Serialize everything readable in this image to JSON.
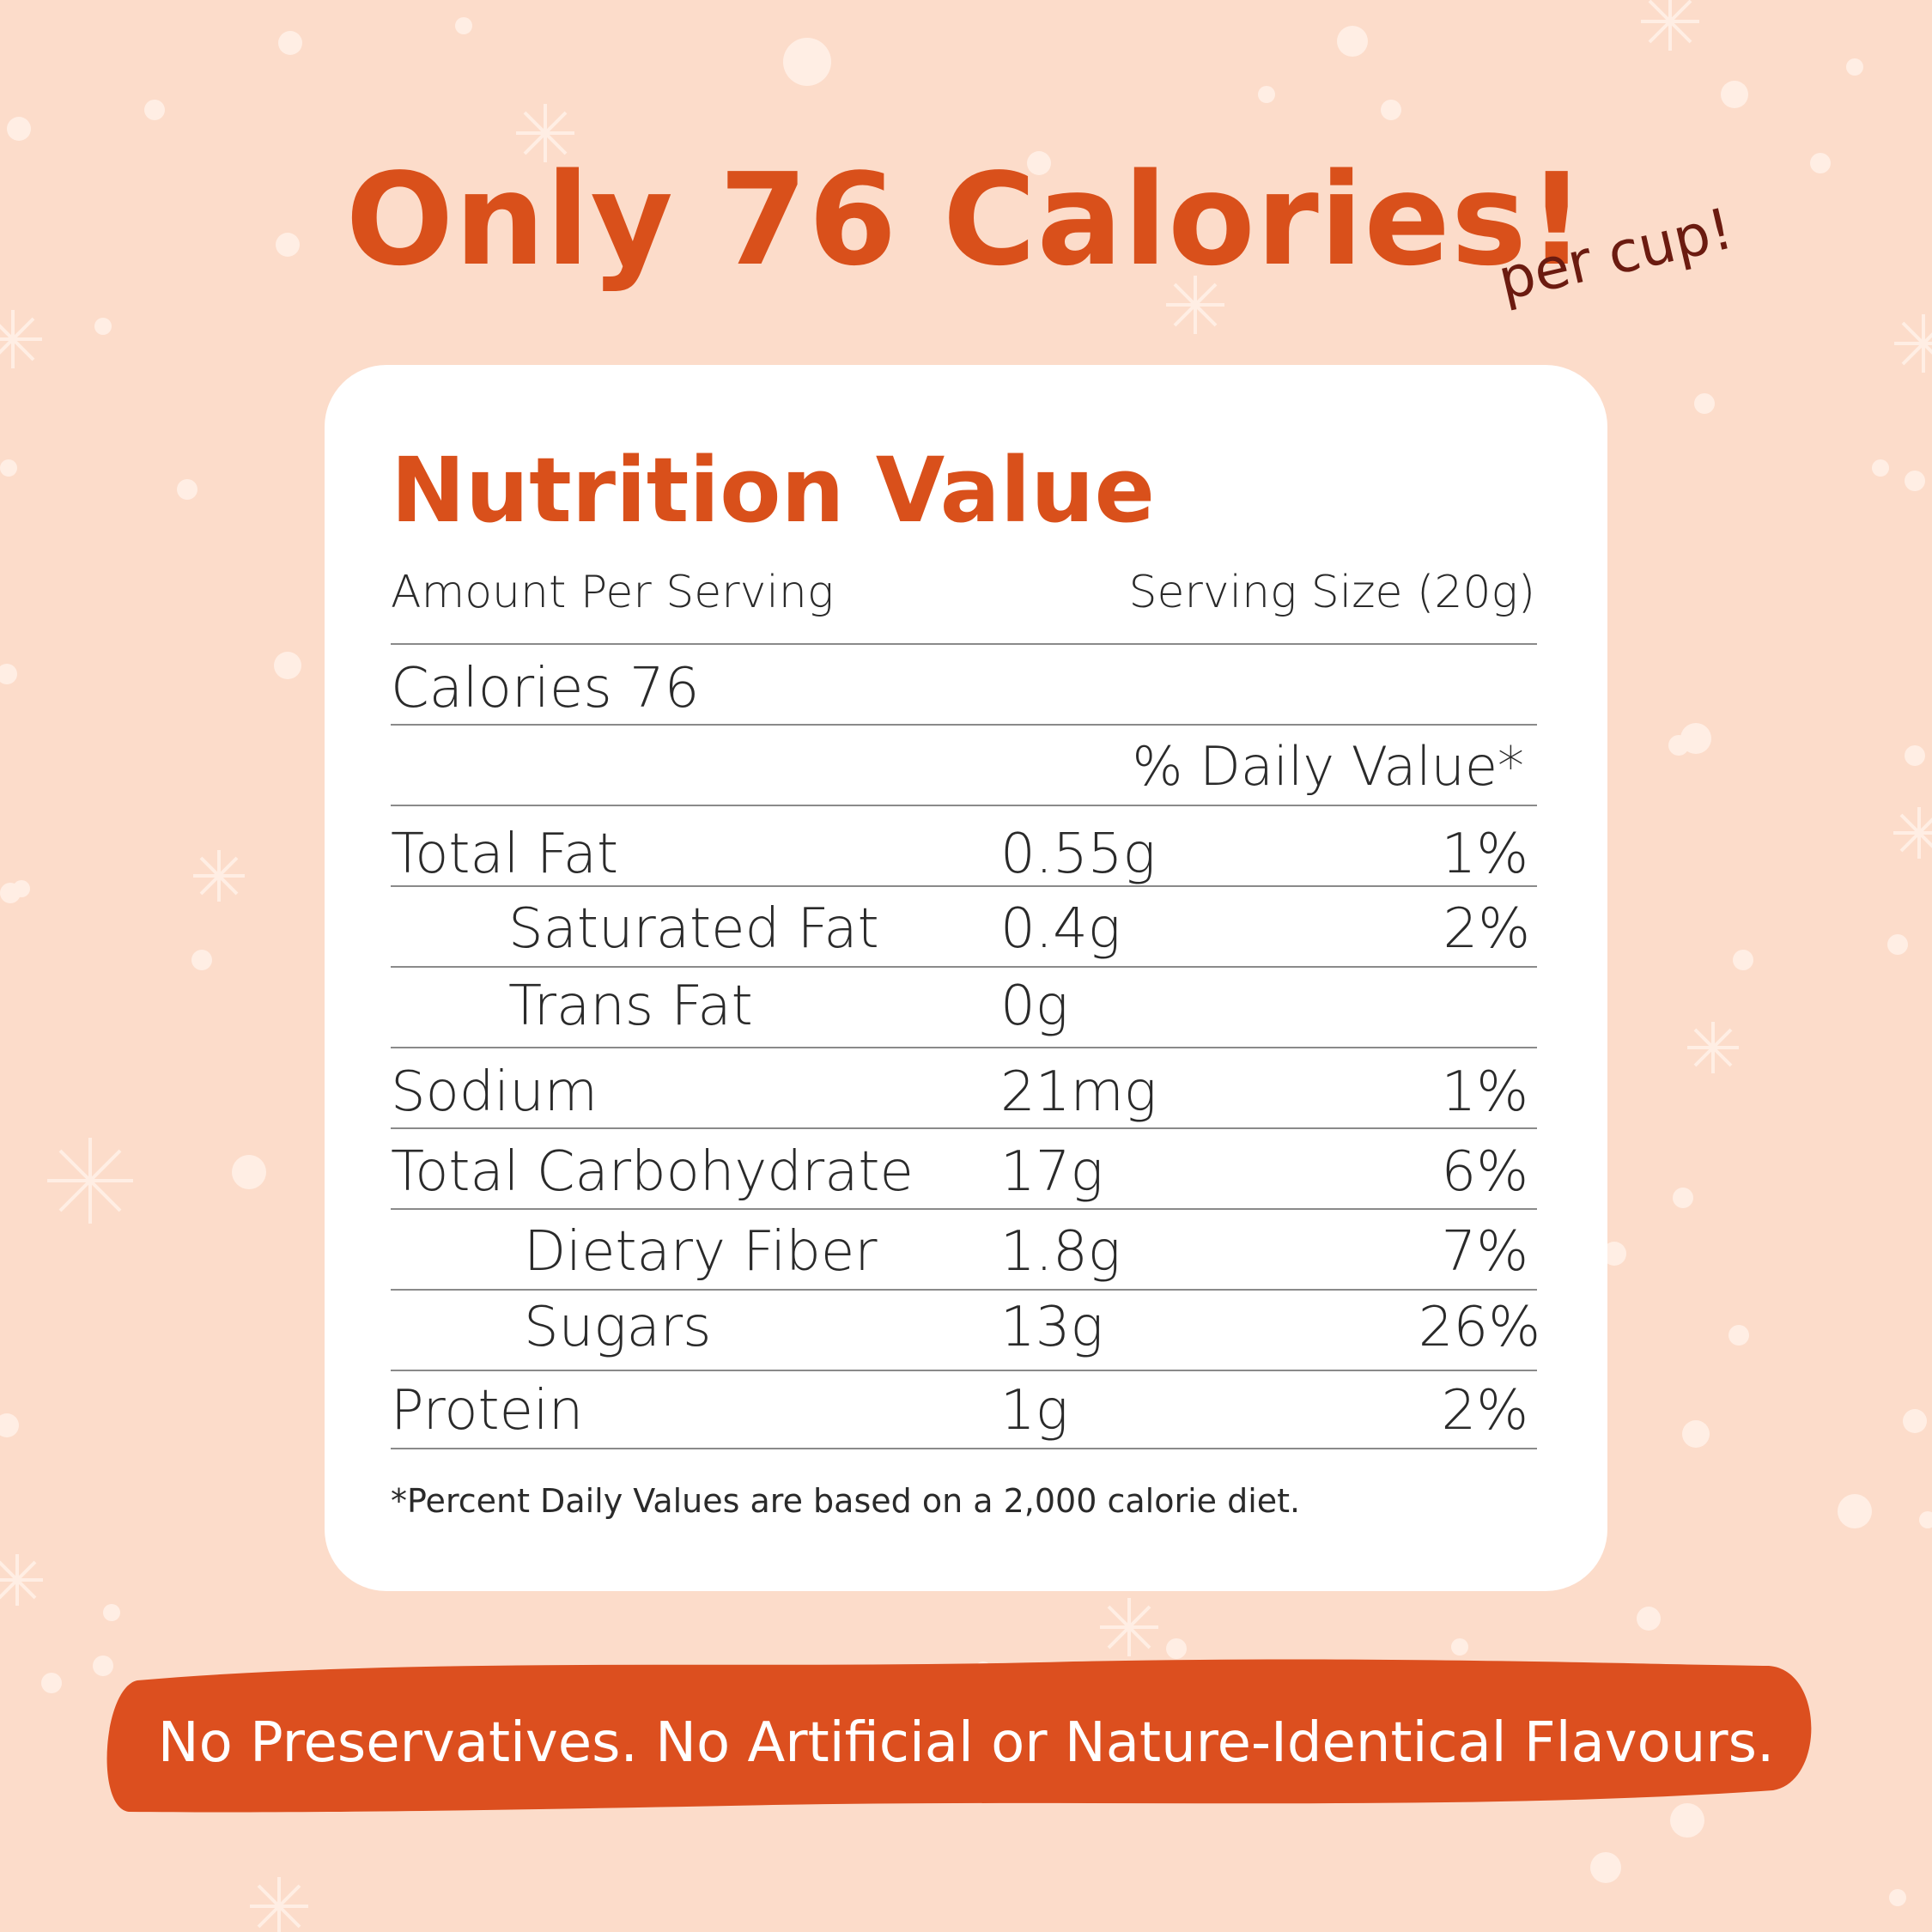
{
  "headline": "Only 76 Calories!",
  "per_cup": "per cup!",
  "card": {
    "title": "Nutrition Value",
    "amount_label": "Amount Per Serving",
    "serving_size": "Serving Size (20g)",
    "calories": "Calories 76",
    "daily_value_header": "% Daily Value*",
    "rows": [
      {
        "name": "Total Fat",
        "amount": "0.55g",
        "dv": "1%"
      },
      {
        "name": "Saturated Fat",
        "amount": "0.4g",
        "dv": "2%"
      },
      {
        "name": "Trans Fat",
        "amount": "0g",
        "dv": ""
      },
      {
        "name": "Sodium",
        "amount": "21mg",
        "dv": "1%"
      },
      {
        "name": "Total Carbohydrate",
        "amount": "17g",
        "dv": "6%"
      },
      {
        "name": "Dietary Fiber",
        "amount": "1.8g",
        "dv": "7%"
      },
      {
        "name": "Sugars",
        "amount": "13g",
        "dv": "26%"
      },
      {
        "name": "Protein",
        "amount": "1g",
        "dv": "2%"
      }
    ],
    "footnote": "*Percent Daily Values are based on a 2,000 calorie diet."
  },
  "banner": "No Preservatives. No Artificial or Nature-Identical Flavours.",
  "colors": {
    "background": "#fcdcca",
    "accent": "#d9501b",
    "card": "#ffffff",
    "script": "#6b1b10"
  }
}
